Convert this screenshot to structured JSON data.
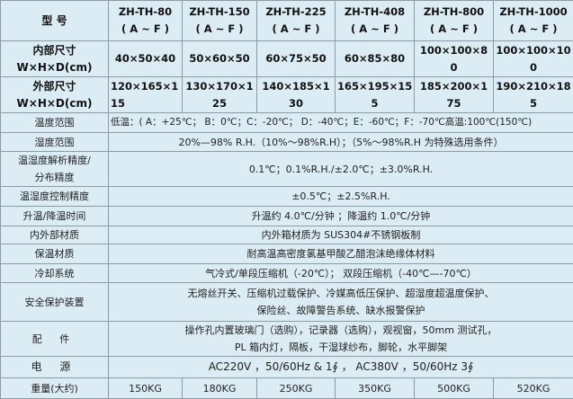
{
  "header": {
    "label": "型 号",
    "models": [
      "ZH-TH-80",
      "ZH-TH-150",
      "ZH-TH-225",
      "ZH-TH-408",
      "ZH-TH-800",
      "ZH-TH-1000"
    ],
    "suffix": "( A ~ F )"
  },
  "inner": {
    "label1": "内部尺寸",
    "label2": "W×H×D(cm)",
    "values": [
      [
        "40×50×40",
        ""
      ],
      [
        "50×60×50",
        ""
      ],
      [
        "60×75×50",
        ""
      ],
      [
        "60×85×80",
        ""
      ],
      [
        "100×100×8",
        "0"
      ],
      [
        "100×100×10",
        "0"
      ]
    ]
  },
  "outer": {
    "label1": "外部尺寸",
    "label2": "W×H×D(cm)",
    "values": [
      [
        "120×165×1",
        "15"
      ],
      [
        "130×170×1",
        "25"
      ],
      [
        "140×185×1",
        "30"
      ],
      [
        "165×195×15",
        "5"
      ],
      [
        "185×200×1",
        "75"
      ],
      [
        "190×210×18",
        "5"
      ]
    ]
  },
  "rows": {
    "temp": {
      "label": "温度范围",
      "value": "低温：( A：+25℃； B：0℃；C：-20℃； D：-40℃；E：-60℃；F：-70℃高温:100℃(150℃)"
    },
    "humidity": {
      "label": "湿度范围",
      "value": "20%—98% R.H.（10%～98%R.H）；（5%～98%R.H 为特殊选用条件）"
    },
    "precision": {
      "label1": "温湿度解析精度/",
      "label2": "分布精度",
      "value": "0.1℃；0.1%R.H./±2.0℃；±3.0%R.H."
    },
    "control": {
      "label": "温湿度控制精度",
      "value": "±0.5℃；±2.5%R.H."
    },
    "time": {
      "label": "升温/降温时间",
      "value": "升温约 4.0℃/分钟 ；降温约 1.0℃/分钟"
    },
    "material": {
      "label": "内外部材质",
      "value": "内外箱材质为 SUS304#不锈钢板制"
    },
    "insulation": {
      "label": "保温材质",
      "value": "耐高温高密度氯基甲酸乙醋泡沫绝缘体材料"
    },
    "cooling": {
      "label": "冷却系统",
      "value": "气冷式/单段压缩机（-20℃）； 双段压缩机（-40℃—-70℃）"
    },
    "safety": {
      "label": "安全保护装置",
      "value1": "无熔丝开关、压缩机过载保护、冷媒高低压保护、超湿度超温度保护、",
      "value2": "保险丝、故障警告系统、缺水报警保护"
    },
    "parts": {
      "label": "配 件",
      "value1": "操作孔内置玻璃门（选购），记录器（选购），观视窗，50mm 测试孔，",
      "value2": "PL 箱内灯，隔板，干湿球纱布，脚轮，水平脚架"
    },
    "power": {
      "label": "电 源",
      "value": "AC220V ，50/60Hz & 1∮ ， AC380V ，50/60Hz 3∮"
    }
  },
  "weight": {
    "label": "重量(大约)",
    "values": [
      "150KG",
      "180KG",
      "250KG",
      "350KG",
      "500KG",
      "520KG"
    ]
  }
}
